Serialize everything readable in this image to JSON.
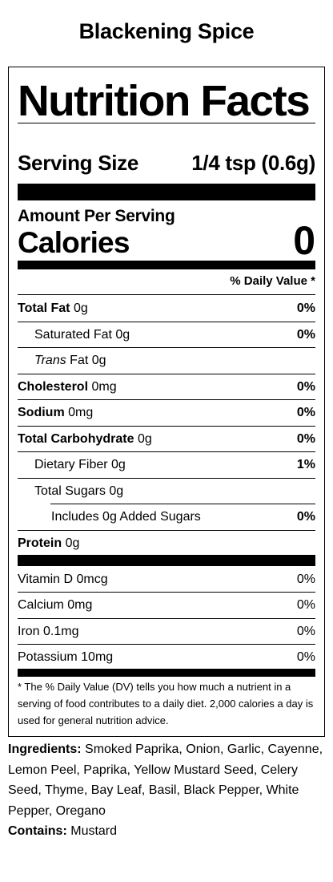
{
  "product": {
    "title": "Blackening Spice"
  },
  "label": {
    "heading": "Nutrition Facts",
    "serving_size_label": "Serving Size",
    "serving_size_value": "1/4 tsp (0.6g)",
    "amount_per_serving": "Amount Per Serving",
    "calories_label": "Calories",
    "calories_value": "0",
    "daily_value_header": "% Daily Value *",
    "nutrients": [
      {
        "name": "Total Fat",
        "amount": "0g",
        "dv": "0%"
      },
      {
        "name": "Saturated Fat",
        "amount": "0g",
        "dv": "0%"
      },
      {
        "name_italic": "Trans",
        "name": "Fat",
        "amount": "0g",
        "dv": ""
      },
      {
        "name": "Cholesterol",
        "amount": "0mg",
        "dv": "0%"
      },
      {
        "name": "Sodium",
        "amount": "0mg",
        "dv": "0%"
      },
      {
        "name": "Total Carbohydrate",
        "amount": "0g",
        "dv": "0%"
      },
      {
        "name": "Dietary Fiber",
        "amount": "0g",
        "dv": "1%"
      },
      {
        "name": "Total Sugars",
        "amount": "0g",
        "dv": ""
      },
      {
        "name": "Includes 0g Added Sugars",
        "amount": "",
        "dv": "0%"
      },
      {
        "name": "Protein",
        "amount": "0g",
        "dv": ""
      }
    ],
    "vitamins": [
      {
        "name": "Vitamin D",
        "amount": "0mcg",
        "dv": "0%"
      },
      {
        "name": "Calcium",
        "amount": "0mg",
        "dv": "0%"
      },
      {
        "name": "Iron",
        "amount": "0.1mg",
        "dv": "0%"
      },
      {
        "name": "Potassium",
        "amount": "10mg",
        "dv": "0%"
      }
    ],
    "footnote": "* The % Daily Value (DV) tells you how much a nutrient in a serving of food contributes to a daily diet. 2,000 calories a day is used for general nutrition advice."
  },
  "ingredients": {
    "label": "Ingredients:",
    "text": "Smoked Paprika, Onion, Garlic, Cayenne, Lemon Peel, Paprika, Yellow Mustard Seed, Celery Seed, Thyme, Bay Leaf, Basil, Black Pepper, White Pepper, Oregano",
    "contains_label": "Contains:",
    "contains_text": "Mustard"
  }
}
